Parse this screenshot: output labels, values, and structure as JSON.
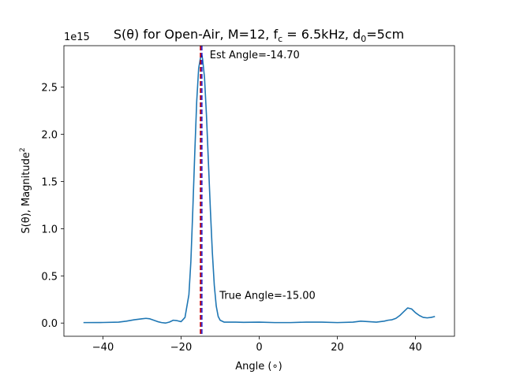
{
  "chart_data": {
    "type": "line",
    "title_parts": [
      "S(θ) for Open-Air, M=12, f",
      "c",
      " = 6.5kHz, d",
      "0",
      "=5cm"
    ],
    "xlabel": "Angle (∘)",
    "ylabel_parts": [
      "S(θ), Magnitude",
      "2"
    ],
    "offset_text": "1e15",
    "xlim": [
      -50,
      50
    ],
    "ylim": [
      -0.14,
      2.94
    ],
    "y_scale": 1000000000000000.0,
    "xticks": [
      -40,
      -20,
      0,
      20,
      40
    ],
    "yticks": [
      0.0,
      0.5,
      1.0,
      1.5,
      2.0,
      2.5
    ],
    "ytick_labels": [
      "0.0",
      "0.5",
      "1.0",
      "1.5",
      "2.0",
      "2.5"
    ],
    "series": [
      {
        "color": "#1f77b4",
        "x": [
          -45,
          -40,
          -36,
          -34,
          -32,
          -30,
          -29,
          -28,
          -27,
          -26,
          -25,
          -24,
          -23,
          -22,
          -21,
          -20,
          -19,
          -18,
          -17.5,
          -17,
          -16.5,
          -16,
          -15.5,
          -15,
          -14.7,
          -14.5,
          -14,
          -13.5,
          -13,
          -12.5,
          -12,
          -11.5,
          -11,
          -10.5,
          -10,
          -9,
          -8,
          -6,
          -4,
          0,
          4,
          8,
          12,
          16,
          20,
          24,
          26,
          28,
          30,
          32,
          33,
          34,
          35,
          36,
          37,
          38,
          39,
          40,
          41,
          42,
          43,
          44,
          45
        ],
        "y": [
          0.005,
          0.006,
          0.01,
          0.02,
          0.035,
          0.045,
          0.05,
          0.045,
          0.03,
          0.015,
          0.005,
          0.0,
          0.01,
          0.03,
          0.025,
          0.015,
          0.06,
          0.3,
          0.65,
          1.2,
          1.8,
          2.35,
          2.7,
          2.82,
          2.84,
          2.8,
          2.6,
          2.2,
          1.7,
          1.2,
          0.75,
          0.4,
          0.18,
          0.07,
          0.03,
          0.01,
          0.01,
          0.01,
          0.008,
          0.01,
          0.005,
          0.005,
          0.01,
          0.01,
          0.005,
          0.01,
          0.02,
          0.015,
          0.01,
          0.02,
          0.03,
          0.035,
          0.05,
          0.08,
          0.12,
          0.16,
          0.15,
          0.11,
          0.08,
          0.06,
          0.055,
          0.06,
          0.07
        ]
      }
    ],
    "est_line": {
      "x": -14.7,
      "color": "#0000cc",
      "label": "Est Angle=-14.70"
    },
    "true_line": {
      "x": -15.0,
      "color": "#cc0000",
      "label": "True Angle=-15.00"
    }
  }
}
